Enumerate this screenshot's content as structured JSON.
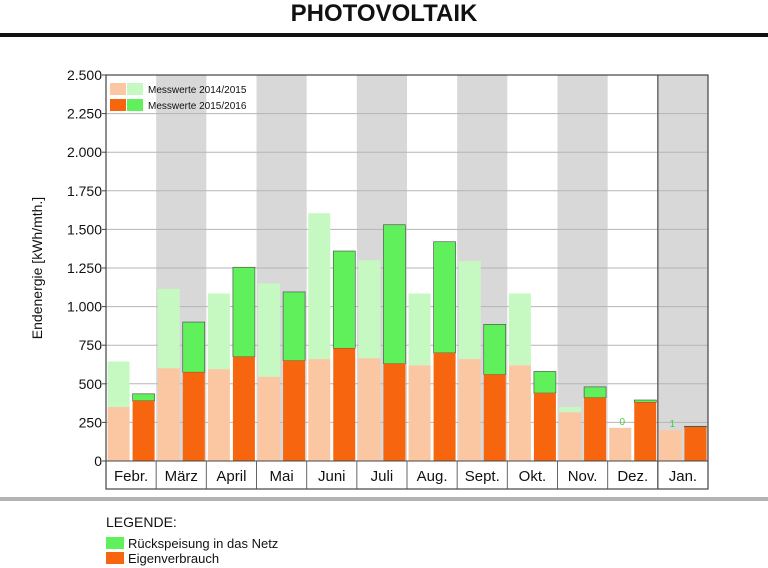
{
  "title": "PHOTOVOLTAIK",
  "colors": {
    "band": "#d8d8d8",
    "grid": "#b5b5b5",
    "old_green": "#c6f9c2",
    "old_orange": "#fbc7a3",
    "new_green": "#5ff05b",
    "new_orange": "#f7650f",
    "tag_green": "#40d040"
  },
  "legend": {
    "title": "LEGENDE:",
    "feed_label": "Rückspeisung in das Netz",
    "own_label": "Eigenverbrauch"
  },
  "chart_data": {
    "type": "bar",
    "ylabel": "Endenergie [kWh/mth.]",
    "ylim": [
      0,
      2500
    ],
    "yticks": [
      0,
      250,
      500,
      750,
      1000,
      1250,
      1500,
      1750,
      2000,
      2250,
      2500
    ],
    "ytick_labels": [
      "0",
      "250",
      "500",
      "750",
      "1.000",
      "1.250",
      "1.500",
      "1.750",
      "2.000",
      "2.250",
      "2.500"
    ],
    "categories": [
      "Febr.",
      "März",
      "April",
      "Mai",
      "Juni",
      "Juli",
      "Aug.",
      "Sept.",
      "Okt.",
      "Nov.",
      "Dez.",
      "Jan."
    ],
    "legend": {
      "position": "top-left"
    },
    "series": [
      {
        "name": "Messwerte 2014/2015",
        "eigenverbrauch": [
          350,
          600,
          595,
          545,
          660,
          665,
          620,
          660,
          620,
          315,
          215,
          200
        ],
        "total": [
          645,
          1115,
          1085,
          1150,
          1605,
          1300,
          1085,
          1295,
          1085,
          350,
          215,
          200
        ]
      },
      {
        "name": "Messwerte 2015/2016",
        "eigenverbrauch": [
          390,
          575,
          675,
          650,
          730,
          630,
          700,
          560,
          440,
          410,
          380,
          220
        ],
        "total": [
          435,
          900,
          1255,
          1095,
          1360,
          1530,
          1420,
          885,
          580,
          480,
          395,
          225
        ]
      }
    ],
    "annotations": [
      {
        "category": "Dez.",
        "text": "0"
      },
      {
        "category": "Jan.",
        "text": "1"
      }
    ]
  }
}
